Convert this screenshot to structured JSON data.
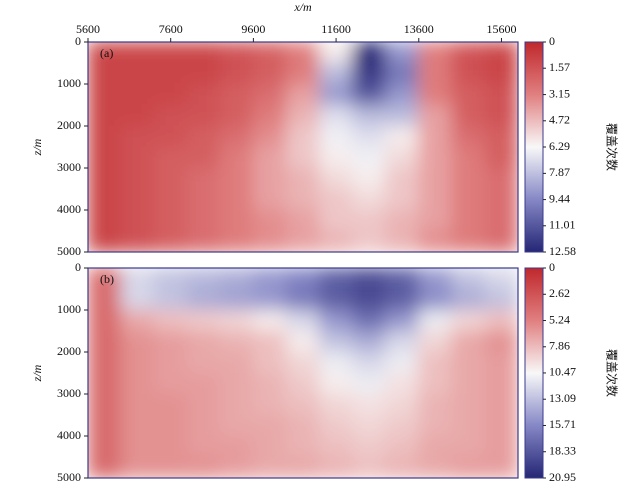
{
  "chart_data": [
    {
      "type": "heatmap",
      "xlabel": "x/m",
      "ylabel": "z/m",
      "label": "(a)",
      "colorbar_label": "覆盖次数",
      "xlim": [
        5600,
        16000
      ],
      "xticks": [
        5600,
        7600,
        9600,
        11600,
        13600,
        15600
      ],
      "ylim": [
        0,
        5000
      ],
      "y_reversed": true,
      "yticks": [
        0,
        1000,
        2000,
        3000,
        4000,
        5000
      ],
      "clim": [
        0,
        12.58
      ],
      "cticks": [
        0,
        1.57,
        3.15,
        4.72,
        6.29,
        7.87,
        9.44,
        11.01,
        12.58
      ],
      "colormap": [
        "#c0282c",
        "#e07f80",
        "#f8f8f8",
        "#8587c6",
        "#252675"
      ],
      "x": [
        6000,
        6800,
        7600,
        8400,
        9200,
        10000,
        10800,
        11600,
        12400,
        13200,
        14000,
        14800,
        15600
      ],
      "y": [
        250,
        750,
        1250,
        1750,
        2250,
        2750,
        3250,
        3750,
        4250,
        4750
      ],
      "z": [
        [
          1,
          1,
          1,
          1,
          1.5,
          2,
          3,
          6,
          12.5,
          9,
          3,
          1.5,
          1
        ],
        [
          1,
          1,
          1,
          1,
          1.5,
          2,
          3,
          8,
          12,
          10,
          3,
          1.5,
          1
        ],
        [
          1,
          1,
          1,
          1.5,
          2,
          2.5,
          4,
          9,
          11,
          9,
          3,
          2,
          1.5
        ],
        [
          1,
          1,
          1.5,
          1.5,
          2,
          3,
          4.5,
          7,
          8,
          8,
          4,
          2,
          1.5
        ],
        [
          1,
          1.5,
          1.5,
          2,
          2.5,
          3.5,
          5,
          6.5,
          7,
          6,
          4,
          2.5,
          2
        ],
        [
          1,
          1.5,
          2,
          2,
          3,
          4,
          5,
          6,
          6.5,
          5.5,
          4,
          3,
          2
        ],
        [
          1,
          1.5,
          2,
          2.5,
          3,
          4,
          4.5,
          5.5,
          6,
          5,
          4,
          3,
          2.5
        ],
        [
          1,
          1.5,
          2,
          2.5,
          3,
          4,
          4.5,
          5,
          5.5,
          5,
          4,
          3,
          2.5
        ],
        [
          1,
          1.5,
          2,
          2.5,
          3,
          3.5,
          4,
          5,
          5,
          4.5,
          4,
          3,
          2.5
        ],
        [
          1,
          1.5,
          2,
          2.5,
          3,
          3.5,
          4,
          4.5,
          5,
          4.5,
          3.5,
          3,
          2.5
        ]
      ]
    },
    {
      "type": "heatmap",
      "ylabel": "z/m",
      "label": "(b)",
      "colorbar_label": "覆盖次数",
      "xlim": [
        5600,
        16000
      ],
      "ylim": [
        0,
        5000
      ],
      "y_reversed": true,
      "yticks": [
        0,
        1000,
        2000,
        3000,
        4000,
        5000
      ],
      "clim": [
        0,
        20.95
      ],
      "cticks": [
        0,
        2.62,
        5.24,
        7.86,
        10.47,
        13.09,
        15.71,
        18.33,
        20.95
      ],
      "colormap": [
        "#c0282c",
        "#e07f80",
        "#f8f8f8",
        "#8587c6",
        "#252675"
      ],
      "x": [
        6000,
        6800,
        7600,
        8400,
        9200,
        10000,
        10800,
        11600,
        12400,
        13200,
        14000,
        14800,
        15600
      ],
      "y": [
        250,
        750,
        1250,
        1750,
        2250,
        2750,
        3250,
        3750,
        4250,
        4750
      ],
      "z": [
        [
          4,
          12,
          13,
          13.5,
          14,
          15,
          16,
          18,
          19,
          18,
          15,
          13,
          12
        ],
        [
          4,
          12,
          13,
          14,
          14.5,
          15,
          16.5,
          18,
          19,
          18,
          15.5,
          14,
          13
        ],
        [
          4,
          7,
          8,
          8.5,
          9,
          10,
          12,
          15,
          17,
          15,
          11,
          9,
          8
        ],
        [
          4,
          6,
          6.5,
          7,
          7.5,
          8,
          10,
          13,
          14,
          12,
          9,
          7,
          6
        ],
        [
          4,
          6,
          6.5,
          7,
          7,
          8,
          9,
          11,
          12,
          11,
          8,
          7,
          6.5
        ],
        [
          4,
          6,
          6.5,
          6.5,
          7,
          7.5,
          8.5,
          10,
          11,
          9.5,
          8,
          7,
          6.5
        ],
        [
          4,
          6,
          6,
          6.5,
          7,
          7.5,
          8,
          9,
          9.5,
          9,
          7.5,
          7,
          6.5
        ],
        [
          4,
          6,
          6,
          6.5,
          7,
          7,
          7.5,
          8.5,
          9,
          8.5,
          7.5,
          7,
          6.5
        ],
        [
          4,
          6,
          6,
          6.5,
          6.5,
          7,
          7.5,
          8,
          8.5,
          8,
          7,
          7,
          6.5
        ],
        [
          4,
          6,
          6,
          6,
          6.5,
          7,
          7,
          7.5,
          8,
          7.5,
          7,
          6.5,
          6.5
        ]
      ]
    }
  ]
}
